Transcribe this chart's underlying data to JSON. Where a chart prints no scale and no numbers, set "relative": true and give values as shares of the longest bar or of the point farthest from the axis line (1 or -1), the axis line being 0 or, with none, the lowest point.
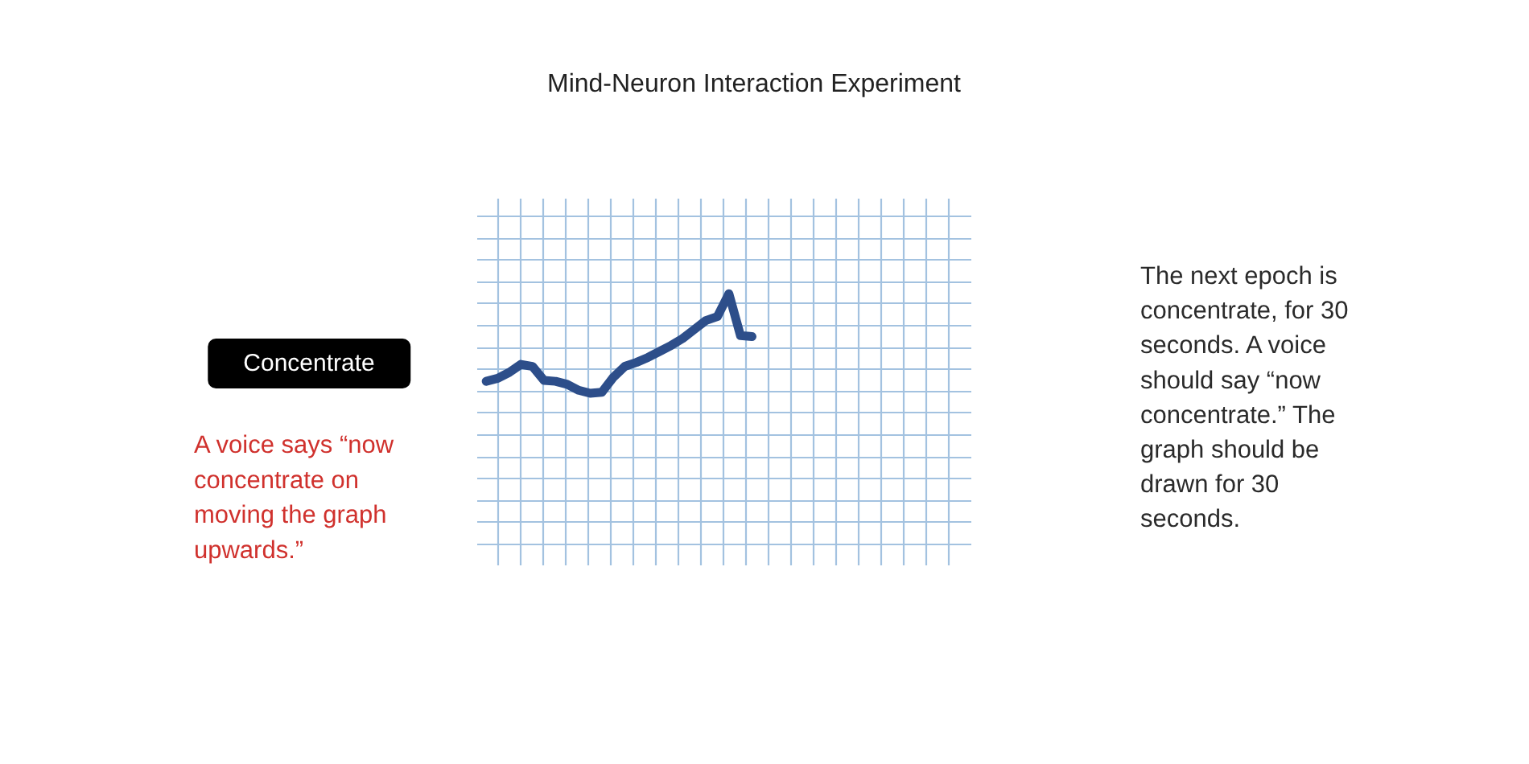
{
  "chart_data": {
    "type": "line",
    "title": "Mind-Neuron Interaction Experiment",
    "annotations": [
      "Concentrate",
      "A voice says “now concentrate on moving the graph upwards.”",
      "The next epoch is concentrate, for 30 seconds. A voice should say “now concentrate.” The graph should be drawn for 30 seconds."
    ],
    "categories": [
      null,
      null,
      null,
      null,
      null,
      null,
      null,
      null,
      null,
      null,
      null,
      null,
      null,
      null,
      null,
      null,
      null,
      null,
      null,
      null,
      null,
      null,
      null,
      null
    ],
    "values": [
      0.12,
      0.15,
      0.21,
      0.29,
      0.27,
      0.13,
      0.12,
      0.09,
      0.03,
      0,
      0.01,
      0.16,
      0.27,
      0.31,
      0.36,
      0.42,
      0.48,
      0.55,
      0.64,
      0.73,
      0.77,
      1,
      0.58,
      0.57
    ],
    "color": "#2d4e8a",
    "relative": true,
    "grid": true
  }
}
